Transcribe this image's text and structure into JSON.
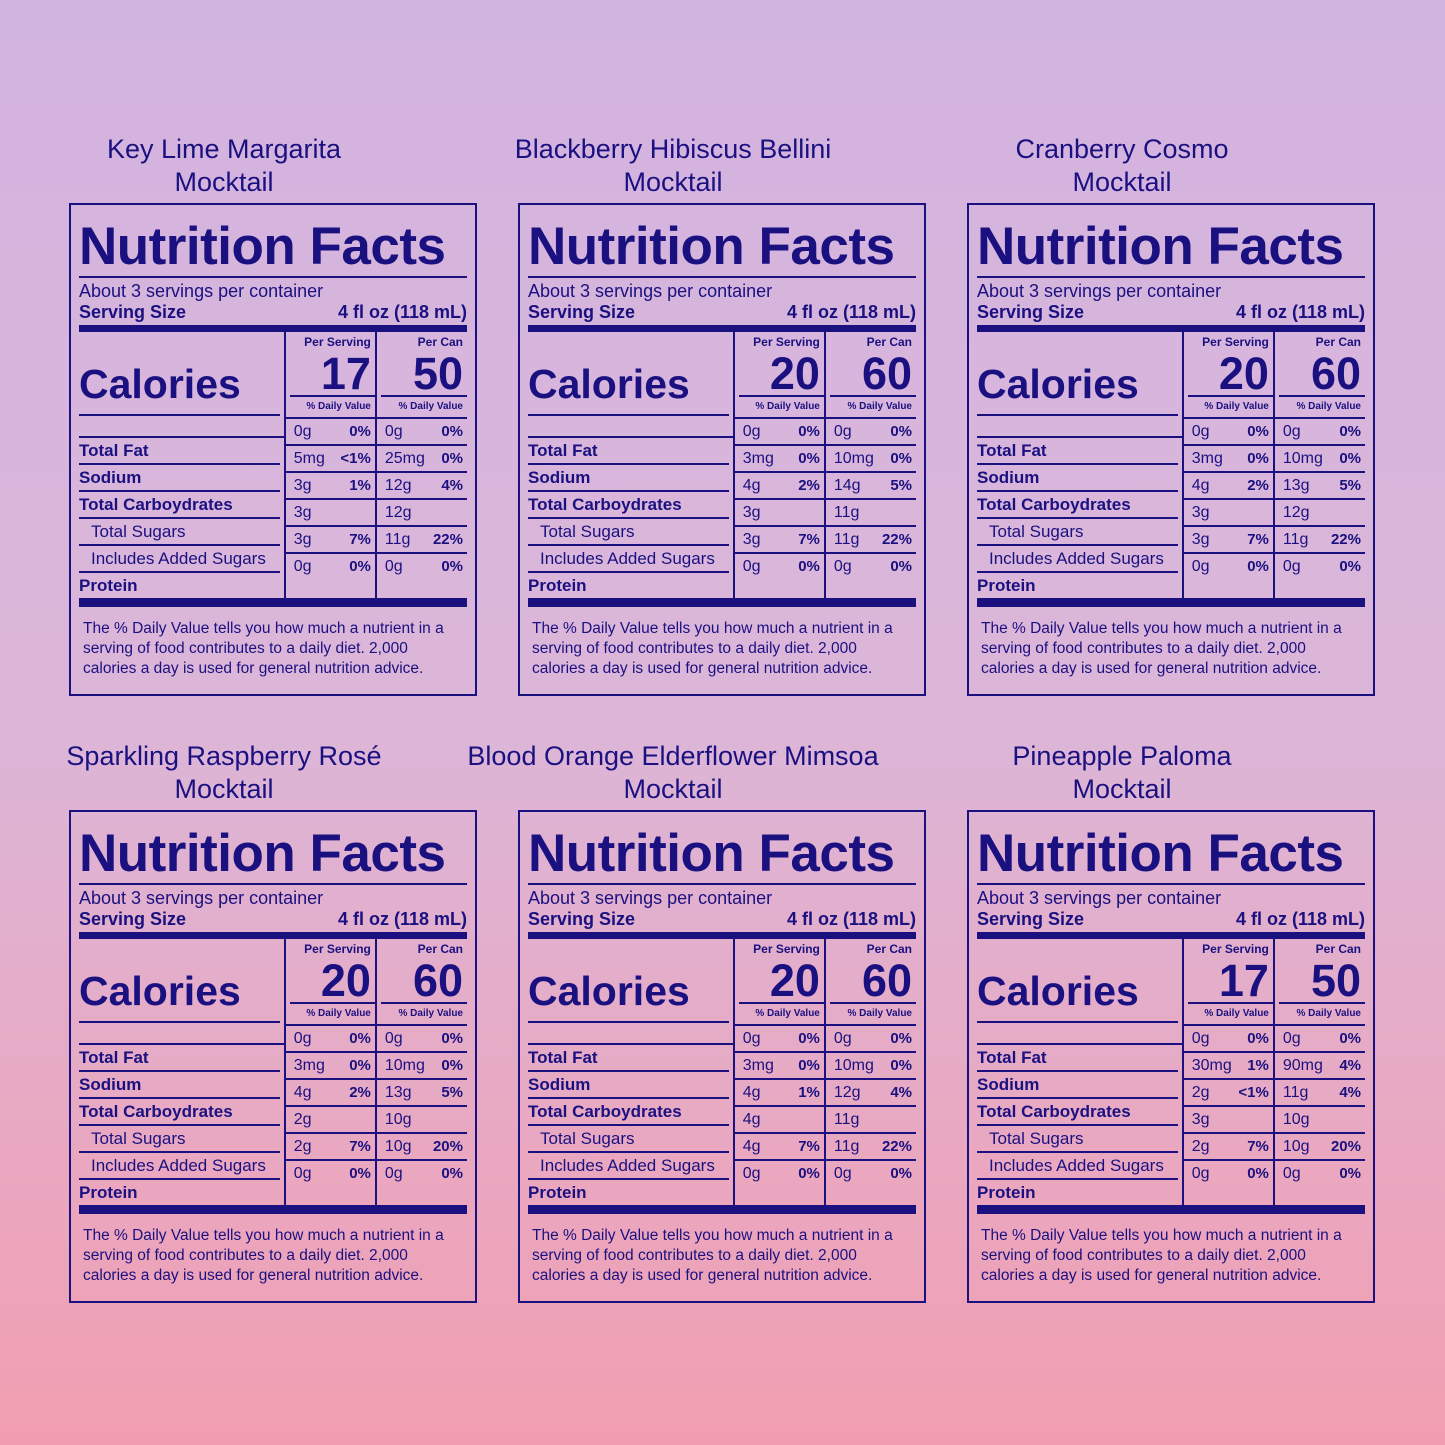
{
  "common": {
    "nf_title": "Nutrition Facts",
    "servings": "About 3 servings per container",
    "serving_size_label": "Serving Size",
    "serving_size_value": "4 fl oz (118 mL)",
    "per_serving": "Per Serving",
    "per_can": "Per Can",
    "calories_label": "Calories",
    "daily_value": "% Daily Value",
    "nutrients": [
      "Total Fat",
      "Sodium",
      "Total Carboydrates",
      "Total Sugars",
      "Includes Added Sugars",
      "Protein"
    ],
    "footnote": "The % Daily Value tells you how much a nutrient in a serving of food contributes to a daily diet. 2,000 calories a day is used for general nutrition advice."
  },
  "products": [
    {
      "title1": "Key Lime Margarita",
      "title2": "Mocktail",
      "cal_serving": "17",
      "cal_can": "50",
      "rows": [
        {
          "s": "0g",
          "sp": "0%",
          "c": "0g",
          "cp": "0%"
        },
        {
          "s": "5mg",
          "sp": "<1%",
          "c": "25mg",
          "cp": "0%"
        },
        {
          "s": "3g",
          "sp": "1%",
          "c": "12g",
          "cp": "4%"
        },
        {
          "s": "3g",
          "sp": "",
          "c": "12g",
          "cp": ""
        },
        {
          "s": "3g",
          "sp": "7%",
          "c": "11g",
          "cp": "22%"
        },
        {
          "s": "0g",
          "sp": "0%",
          "c": "0g",
          "cp": "0%"
        }
      ]
    },
    {
      "title1": "Blackberry Hibiscus Bellini",
      "title2": "Mocktail",
      "cal_serving": "20",
      "cal_can": "60",
      "rows": [
        {
          "s": "0g",
          "sp": "0%",
          "c": "0g",
          "cp": "0%"
        },
        {
          "s": "3mg",
          "sp": "0%",
          "c": "10mg",
          "cp": "0%"
        },
        {
          "s": "4g",
          "sp": "2%",
          "c": "14g",
          "cp": "5%"
        },
        {
          "s": "3g",
          "sp": "",
          "c": "11g",
          "cp": ""
        },
        {
          "s": "3g",
          "sp": "7%",
          "c": "11g",
          "cp": "22%"
        },
        {
          "s": "0g",
          "sp": "0%",
          "c": "0g",
          "cp": "0%"
        }
      ]
    },
    {
      "title1": "Cranberry Cosmo",
      "title2": "Mocktail",
      "cal_serving": "20",
      "cal_can": "60",
      "rows": [
        {
          "s": "0g",
          "sp": "0%",
          "c": "0g",
          "cp": "0%"
        },
        {
          "s": "3mg",
          "sp": "0%",
          "c": "10mg",
          "cp": "0%"
        },
        {
          "s": "4g",
          "sp": "2%",
          "c": "13g",
          "cp": "5%"
        },
        {
          "s": "3g",
          "sp": "",
          "c": "12g",
          "cp": ""
        },
        {
          "s": "3g",
          "sp": "7%",
          "c": "11g",
          "cp": "22%"
        },
        {
          "s": "0g",
          "sp": "0%",
          "c": "0g",
          "cp": "0%"
        }
      ]
    },
    {
      "title1": "Sparkling Raspberry Rosé",
      "title2": "Mocktail",
      "cal_serving": "20",
      "cal_can": "60",
      "rows": [
        {
          "s": "0g",
          "sp": "0%",
          "c": "0g",
          "cp": "0%"
        },
        {
          "s": "3mg",
          "sp": "0%",
          "c": "10mg",
          "cp": "0%"
        },
        {
          "s": "4g",
          "sp": "2%",
          "c": "13g",
          "cp": "5%"
        },
        {
          "s": "2g",
          "sp": "",
          "c": "10g",
          "cp": ""
        },
        {
          "s": "2g",
          "sp": "7%",
          "c": "10g",
          "cp": "20%"
        },
        {
          "s": "0g",
          "sp": "0%",
          "c": "0g",
          "cp": "0%"
        }
      ]
    },
    {
      "title1": "Blood Orange Elderflower Mimsoa",
      "title2": "Mocktail",
      "cal_serving": "20",
      "cal_can": "60",
      "rows": [
        {
          "s": "0g",
          "sp": "0%",
          "c": "0g",
          "cp": "0%"
        },
        {
          "s": "3mg",
          "sp": "0%",
          "c": "10mg",
          "cp": "0%"
        },
        {
          "s": "4g",
          "sp": "1%",
          "c": "12g",
          "cp": "4%"
        },
        {
          "s": "4g",
          "sp": "",
          "c": "11g",
          "cp": ""
        },
        {
          "s": "4g",
          "sp": "7%",
          "c": "11g",
          "cp": "22%"
        },
        {
          "s": "0g",
          "sp": "0%",
          "c": "0g",
          "cp": "0%"
        }
      ]
    },
    {
      "title1": "Pineapple Paloma",
      "title2": "Mocktail",
      "cal_serving": "17",
      "cal_can": "50",
      "rows": [
        {
          "s": "0g",
          "sp": "0%",
          "c": "0g",
          "cp": "0%"
        },
        {
          "s": "30mg",
          "sp": "1%",
          "c": "90mg",
          "cp": "4%"
        },
        {
          "s": "2g",
          "sp": "<1%",
          "c": "11g",
          "cp": "4%"
        },
        {
          "s": "3g",
          "sp": "",
          "c": "10g",
          "cp": ""
        },
        {
          "s": "2g",
          "sp": "7%",
          "c": "10g",
          "cp": "20%"
        },
        {
          "s": "0g",
          "sp": "0%",
          "c": "0g",
          "cp": "0%"
        }
      ]
    }
  ]
}
